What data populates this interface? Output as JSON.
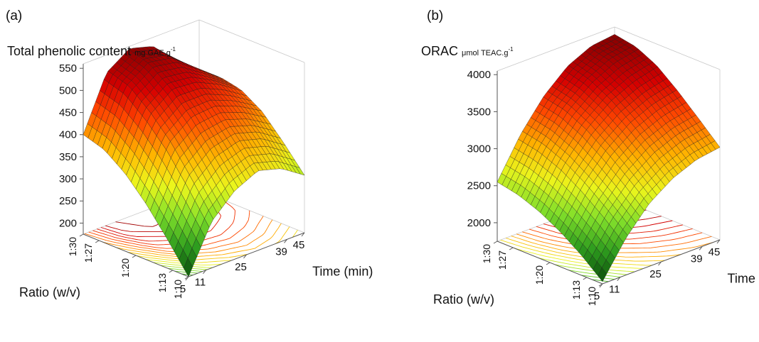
{
  "panels": [
    {
      "label": "(a)",
      "z_title": "Total phenolic content",
      "z_unit": "mg GAE.g",
      "z_unit_exp": "-1"
    },
    {
      "label": "(b)",
      "z_title": "ORAC",
      "z_unit": "μmol TEAC.g",
      "z_unit_exp": "-1"
    }
  ],
  "chart_data": [
    {
      "type": "surface",
      "title": "Total phenolic content mg GAE.g-1",
      "xlabel": "Time (min)",
      "ylabel": "Ratio (w/v)",
      "x_ticks": [
        "5",
        "11",
        "25",
        "39",
        "45"
      ],
      "x_tick_values": [
        5,
        11,
        25,
        39,
        45
      ],
      "y_ticks": [
        "1:10",
        "1:13",
        "1:20",
        "1:27",
        "1:30"
      ],
      "y_tick_values": [
        10,
        13,
        20,
        27,
        30
      ],
      "z_ticks": [
        200,
        250,
        300,
        350,
        400,
        450,
        500,
        550
      ],
      "zlim": [
        175,
        560
      ],
      "x_range": [
        5,
        45
      ],
      "y_range": [
        10,
        30
      ],
      "color_scale": [
        "#0a4a0a",
        "#2d9a1e",
        "#7fdc2a",
        "#e8f21c",
        "#ffb000",
        "#ff4a00",
        "#d40000",
        "#8a0000"
      ],
      "corner_values": {
        "x5_y10": 175,
        "x45_y10": 305,
        "x5_y30": 400,
        "x45_y30": 440
      },
      "maximum": {
        "x": 20,
        "y": 30,
        "z": 555
      },
      "surface_grid": {
        "x": [
          5,
          13,
          21,
          29,
          37,
          45
        ],
        "y": [
          10,
          14,
          18,
          22,
          26,
          30
        ],
        "z": [
          [
            175,
            280,
            330,
            355,
            340,
            305
          ],
          [
            240,
            350,
            395,
            410,
            395,
            360
          ],
          [
            300,
            415,
            455,
            460,
            440,
            410
          ],
          [
            350,
            465,
            505,
            500,
            475,
            440
          ],
          [
            385,
            505,
            540,
            530,
            490,
            450
          ],
          [
            400,
            520,
            555,
            540,
            490,
            440
          ]
        ]
      }
    },
    {
      "type": "surface",
      "title": "ORAC μmol TEAC.g-1",
      "xlabel": "Time (min)",
      "ylabel": "Ratio (w/v)",
      "x_ticks": [
        "5",
        "11",
        "25",
        "39",
        "45"
      ],
      "x_tick_values": [
        5,
        11,
        25,
        39,
        45
      ],
      "y_ticks": [
        "1:10",
        "1:13",
        "1:20",
        "1:27",
        "1:30"
      ],
      "y_tick_values": [
        10,
        13,
        20,
        27,
        30
      ],
      "z_ticks": [
        2000,
        2500,
        3000,
        3500,
        4000
      ],
      "zlim": [
        1750,
        4050
      ],
      "x_range": [
        5,
        45
      ],
      "y_range": [
        10,
        30
      ],
      "color_scale": [
        "#0a4a0a",
        "#2d9a1e",
        "#7fdc2a",
        "#e8f21c",
        "#ffb000",
        "#ff4a00",
        "#d40000",
        "#8a0000"
      ],
      "corner_values": {
        "x5_y10": 1780,
        "x45_y10": 3000,
        "x5_y30": 2550,
        "x45_y30": 3950
      },
      "maximum": {
        "x": 45,
        "y": 28,
        "z": 3980
      },
      "surface_grid": {
        "x": [
          5,
          13,
          21,
          29,
          37,
          45
        ],
        "y": [
          10,
          14,
          18,
          22,
          26,
          30
        ],
        "z": [
          [
            1780,
            2250,
            2600,
            2820,
            2950,
            3000
          ],
          [
            2020,
            2500,
            2850,
            3080,
            3210,
            3270
          ],
          [
            2220,
            2720,
            3080,
            3320,
            3460,
            3530
          ],
          [
            2380,
            2900,
            3280,
            3530,
            3680,
            3760
          ],
          [
            2490,
            3020,
            3420,
            3680,
            3840,
            3900
          ],
          [
            2550,
            3080,
            3480,
            3760,
            3910,
            3950
          ]
        ]
      }
    }
  ]
}
